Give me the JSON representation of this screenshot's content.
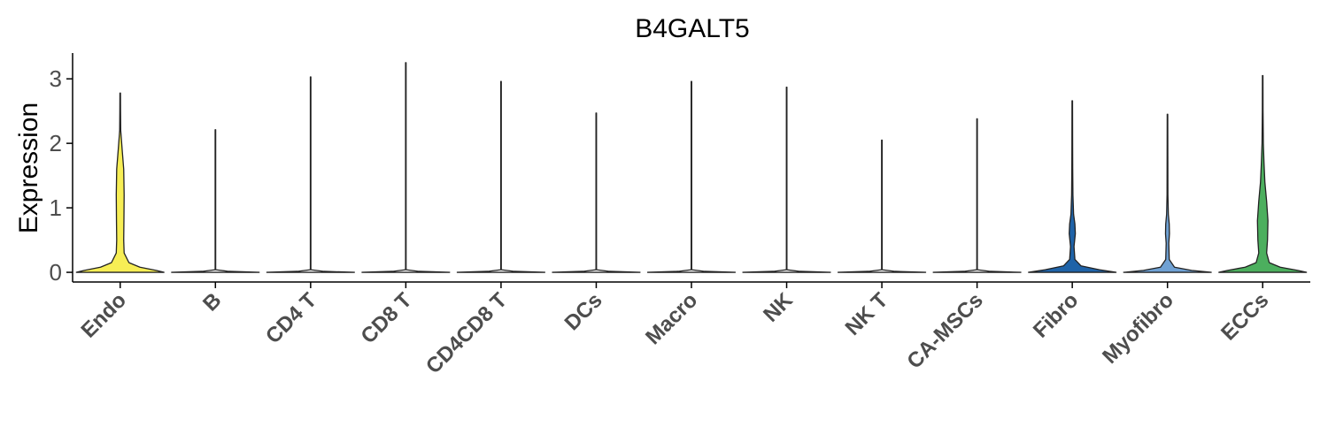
{
  "chart_data": {
    "type": "violin",
    "title": "B4GALT5",
    "xlabel": "",
    "ylabel": "Expression",
    "ylim": [
      -0.15,
      3.4
    ],
    "yticks": [
      0,
      1,
      2,
      3
    ],
    "grid": false,
    "legend": "none",
    "categories": [
      "Endo",
      "B",
      "CD4 T",
      "CD8 T",
      "CD4CD8 T",
      "DCs",
      "Macro",
      "NK",
      "NK T",
      "CA-MSCs",
      "Fibro",
      "Myofibro",
      "ECCs"
    ],
    "max_values": [
      2.78,
      2.21,
      3.03,
      3.25,
      2.96,
      2.47,
      2.96,
      2.87,
      2.05,
      2.38,
      2.66,
      2.45,
      3.05
    ],
    "colors": [
      "#F7EE55",
      "#ffffff",
      "#ffffff",
      "#ffffff",
      "#ffffff",
      "#ffffff",
      "#ffffff",
      "#ffffff",
      "#ffffff",
      "#ffffff",
      "#1F63A8",
      "#6FA1D4",
      "#4CAF5E"
    ],
    "profiles": [
      [
        [
          0,
          1.0
        ],
        [
          0.03,
          0.82
        ],
        [
          0.08,
          0.45
        ],
        [
          0.15,
          0.2
        ],
        [
          0.3,
          0.09
        ],
        [
          0.5,
          0.08
        ],
        [
          0.8,
          0.085
        ],
        [
          1.2,
          0.09
        ],
        [
          1.6,
          0.08
        ],
        [
          1.9,
          0.045
        ],
        [
          2.2,
          0.012
        ],
        [
          2.5,
          0.008
        ],
        [
          2.78,
          0.006
        ]
      ],
      [
        [
          0,
          1.0
        ],
        [
          0.015,
          0.3
        ],
        [
          0.04,
          0.006
        ],
        [
          2.21,
          0.006
        ]
      ],
      [
        [
          0,
          1.0
        ],
        [
          0.015,
          0.3
        ],
        [
          0.04,
          0.006
        ],
        [
          3.03,
          0.006
        ]
      ],
      [
        [
          0,
          1.0
        ],
        [
          0.015,
          0.3
        ],
        [
          0.04,
          0.006
        ],
        [
          3.25,
          0.006
        ]
      ],
      [
        [
          0,
          1.0
        ],
        [
          0.015,
          0.3
        ],
        [
          0.04,
          0.006
        ],
        [
          2.96,
          0.006
        ]
      ],
      [
        [
          0,
          1.0
        ],
        [
          0.015,
          0.3
        ],
        [
          0.04,
          0.006
        ],
        [
          2.47,
          0.006
        ]
      ],
      [
        [
          0,
          1.0
        ],
        [
          0.015,
          0.3
        ],
        [
          0.04,
          0.006
        ],
        [
          2.96,
          0.006
        ]
      ],
      [
        [
          0,
          1.0
        ],
        [
          0.015,
          0.3
        ],
        [
          0.04,
          0.006
        ],
        [
          2.87,
          0.006
        ]
      ],
      [
        [
          0,
          1.0
        ],
        [
          0.015,
          0.3
        ],
        [
          0.04,
          0.006
        ],
        [
          2.05,
          0.006
        ]
      ],
      [
        [
          0,
          1.0
        ],
        [
          0.015,
          0.3
        ],
        [
          0.04,
          0.006
        ],
        [
          2.38,
          0.006
        ]
      ],
      [
        [
          0,
          1.0
        ],
        [
          0.04,
          0.62
        ],
        [
          0.1,
          0.2
        ],
        [
          0.2,
          0.06
        ],
        [
          0.4,
          0.04
        ],
        [
          0.6,
          0.07
        ],
        [
          0.75,
          0.06
        ],
        [
          0.9,
          0.03
        ],
        [
          1.2,
          0.015
        ],
        [
          1.6,
          0.01
        ],
        [
          2.0,
          0.008
        ],
        [
          2.66,
          0.006
        ]
      ],
      [
        [
          0,
          1.0
        ],
        [
          0.03,
          0.55
        ],
        [
          0.08,
          0.16
        ],
        [
          0.2,
          0.04
        ],
        [
          0.45,
          0.03
        ],
        [
          0.6,
          0.045
        ],
        [
          0.75,
          0.04
        ],
        [
          0.9,
          0.02
        ],
        [
          1.2,
          0.01
        ],
        [
          1.8,
          0.008
        ],
        [
          2.45,
          0.006
        ]
      ],
      [
        [
          0,
          1.0
        ],
        [
          0.03,
          0.8
        ],
        [
          0.08,
          0.4
        ],
        [
          0.15,
          0.15
        ],
        [
          0.3,
          0.09
        ],
        [
          0.5,
          0.11
        ],
        [
          0.8,
          0.12
        ],
        [
          1.1,
          0.09
        ],
        [
          1.4,
          0.05
        ],
        [
          1.7,
          0.03
        ],
        [
          2.0,
          0.015
        ],
        [
          2.5,
          0.008
        ],
        [
          3.05,
          0.006
        ]
      ]
    ]
  }
}
